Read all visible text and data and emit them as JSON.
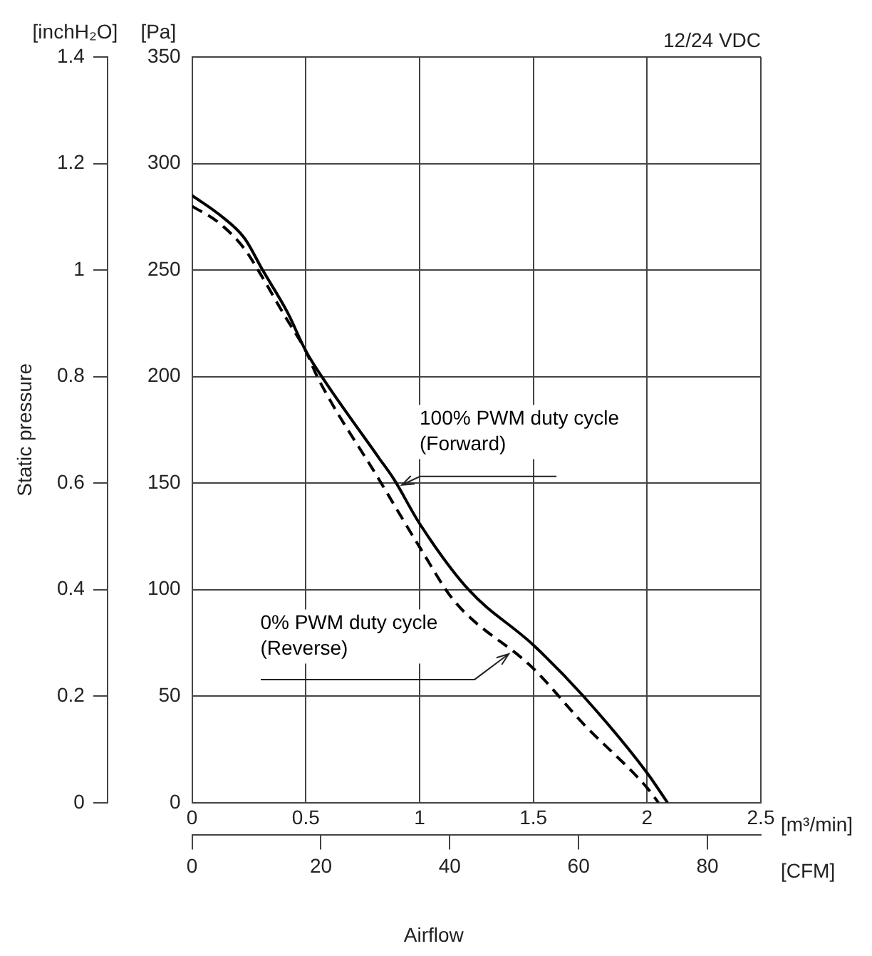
{
  "chart_data": {
    "type": "line",
    "title": "12/24 VDC",
    "xlabel": "[m³/min]",
    "x2label": "[CFM]",
    "ylabel": "[Pa]",
    "y2label": "[inchH₂O]",
    "annotations": [
      "Static pressure",
      "Airflow"
    ],
    "xlim": [
      0,
      2.5
    ],
    "xticks": [
      0,
      0.5,
      1,
      1.5,
      2,
      2.5
    ],
    "x2lim": [
      0,
      88.3
    ],
    "x2ticks": [
      0,
      20,
      40,
      60,
      80
    ],
    "ylim": [
      0,
      350
    ],
    "yticks": [
      0,
      50,
      100,
      150,
      200,
      250,
      300,
      350
    ],
    "y2lim": [
      0,
      1.4
    ],
    "y2ticks": [
      0,
      0.2,
      0.4,
      0.6,
      0.8,
      1,
      1.2,
      1.4
    ],
    "grid": true,
    "legend": false,
    "series": [
      {
        "name": "100% PWM duty cycle (Forward)",
        "color": "#000000",
        "line_style": "solid",
        "x": [
          0,
          0.12,
          0.23,
          0.31,
          0.42,
          0.5,
          0.57,
          0.82,
          0.886,
          1.0,
          1.215,
          1.5,
          1.72,
          2.0,
          2.09
        ],
        "values": [
          285,
          276,
          265,
          250,
          230,
          212,
          200,
          162,
          152,
          131,
          100,
          74,
          50,
          14,
          0
        ]
      },
      {
        "name": "0% PWM duty cycle (Reverse)",
        "color": "#000000",
        "line_style": "dashed",
        "x": [
          0,
          0.12,
          0.23,
          0.29,
          0.41,
          0.5,
          0.55,
          0.82,
          1.0,
          1.15,
          1.5,
          1.72,
          2.0,
          2.05
        ],
        "values": [
          280,
          272,
          260,
          250,
          228,
          212,
          200,
          152,
          120,
          95,
          63,
          37,
          7,
          0
        ]
      }
    ]
  }
}
